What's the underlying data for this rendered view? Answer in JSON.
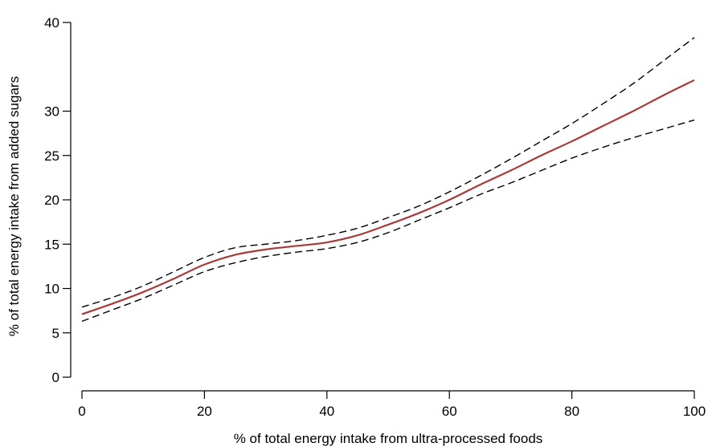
{
  "chart_data": {
    "type": "line",
    "title": "",
    "xlabel": "% of total energy intake from ultra-processed foods",
    "ylabel": "% of total energy intake from added sugars",
    "xlim": [
      0,
      100
    ],
    "ylim": [
      0,
      40
    ],
    "x_ticks": [
      0,
      20,
      40,
      60,
      80,
      100
    ],
    "y_ticks": [
      0,
      5,
      10,
      15,
      20,
      25,
      30,
      40
    ],
    "grid": false,
    "x": [
      0,
      5,
      10,
      15,
      20,
      25,
      30,
      35,
      40,
      45,
      50,
      55,
      60,
      65,
      70,
      75,
      80,
      85,
      90,
      95,
      100
    ],
    "series": [
      {
        "role": "fit",
        "color": "#a83a3a",
        "values": [
          7.1,
          8.3,
          9.6,
          11.1,
          12.7,
          13.8,
          14.4,
          14.8,
          15.2,
          16.0,
          17.2,
          18.5,
          20.0,
          21.7,
          23.3,
          25.0,
          26.6,
          28.3,
          30.0,
          31.8,
          33.5
        ]
      },
      {
        "role": "upper-ci",
        "color": "#000000",
        "values": [
          7.9,
          9.0,
          10.3,
          11.9,
          13.5,
          14.6,
          15.0,
          15.4,
          16.0,
          16.8,
          18.0,
          19.3,
          20.9,
          22.7,
          24.6,
          26.6,
          28.6,
          30.8,
          33.1,
          35.7,
          38.3
        ]
      },
      {
        "role": "lower-ci",
        "color": "#000000",
        "values": [
          6.3,
          7.6,
          8.9,
          10.4,
          11.9,
          12.9,
          13.6,
          14.1,
          14.5,
          15.2,
          16.3,
          17.7,
          19.1,
          20.6,
          21.9,
          23.3,
          24.7,
          25.9,
          27.0,
          28.0,
          29.0
        ]
      }
    ]
  }
}
